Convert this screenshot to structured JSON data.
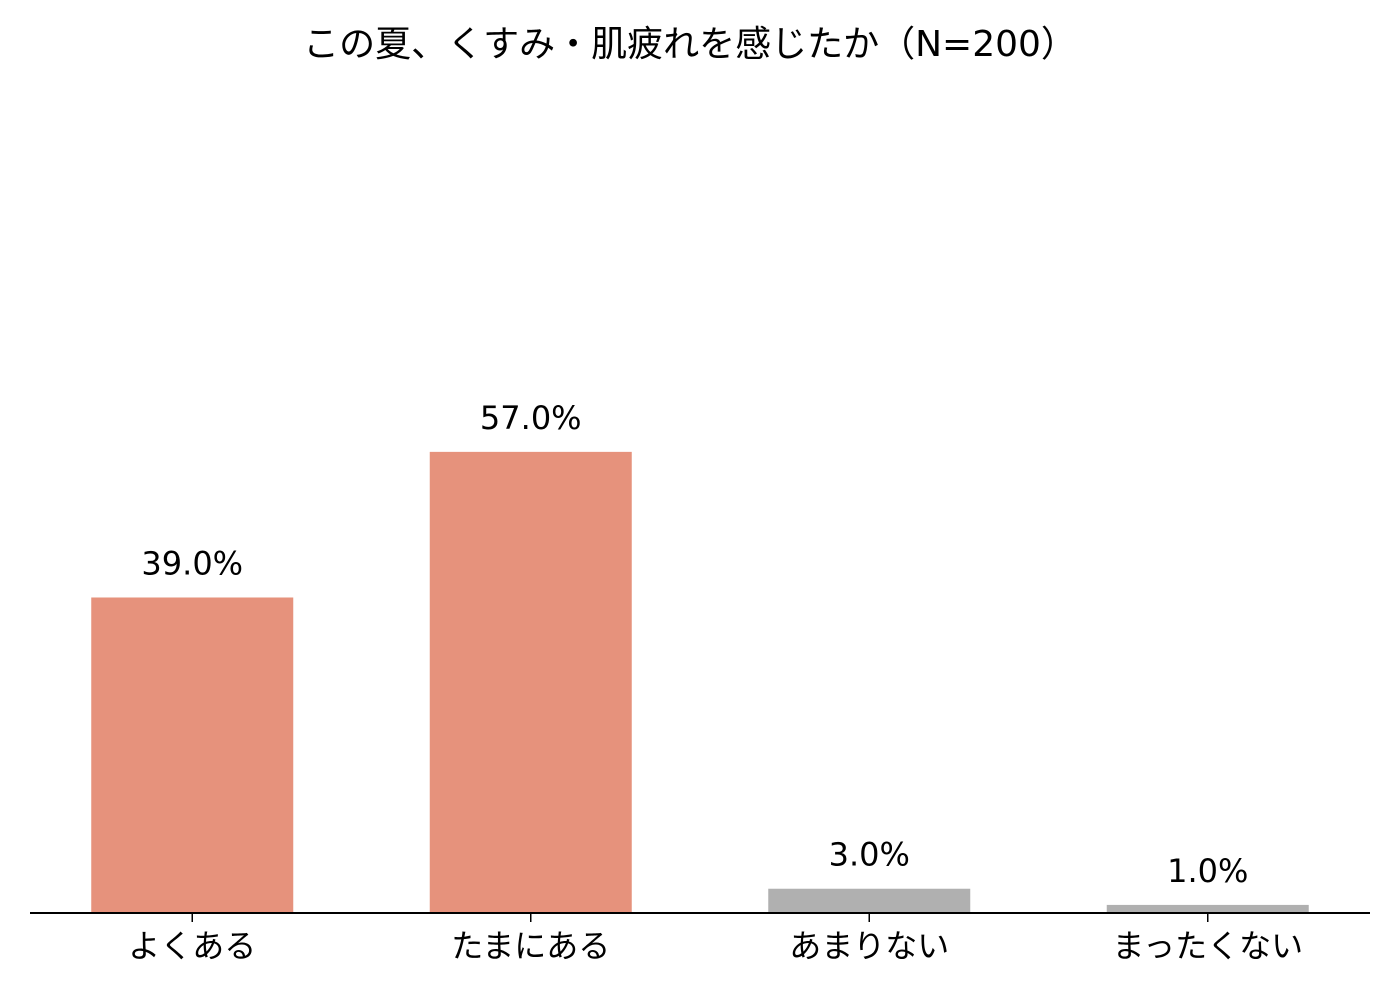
{
  "chart_data": {
    "type": "bar",
    "title": "この夏、くすみ・肌疲れを感じたか（N=200）",
    "categories": [
      "よくある",
      "たまにある",
      "あまりない",
      "まったくない"
    ],
    "values": [
      39.0,
      57.0,
      3.0,
      1.0
    ],
    "value_labels": [
      "39.0%",
      "57.0%",
      "3.0%",
      "1.0%"
    ],
    "colors": [
      "#e6927c",
      "#e6927c",
      "#b0b0b0",
      "#b0b0b0"
    ],
    "ylim": [
      0,
      100
    ]
  }
}
